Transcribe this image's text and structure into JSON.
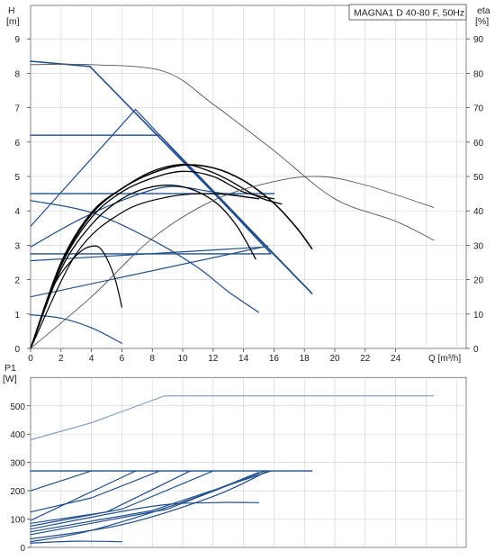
{
  "title": "MAGNA1 D 40-80 F, 50Hz",
  "colors": {
    "blue": "#1f4e8c",
    "light_blue": "#6f8fb8",
    "black": "#000000",
    "gray": "#555555",
    "grid": "#d6d6d6"
  },
  "chart_data": [
    {
      "type": "line",
      "title": "MAGNA1 D 40-80 F, 50Hz",
      "xlabel": "Q [m³/h]",
      "ylabel": "H [m]",
      "y2label": "eta [%]",
      "xlim": [
        0,
        28.5
      ],
      "ylim": [
        0,
        10
      ],
      "y2lim": [
        0,
        100
      ],
      "grid": true,
      "x_ticks": [
        0,
        2,
        4,
        6,
        8,
        10,
        12,
        14,
        16,
        18,
        20,
        22,
        24
      ],
      "y_ticks": [
        0,
        1,
        2,
        3,
        4,
        5,
        6,
        7,
        8,
        9
      ],
      "y2_ticks": [
        0,
        10,
        20,
        30,
        40,
        50,
        60,
        70,
        80,
        90
      ],
      "series": [
        {
          "role": "qh-max",
          "color": "blue",
          "width": 1.6,
          "points": [
            [
              0,
              8.35
            ],
            [
              3.9,
              8.2
            ],
            [
              18.5,
              1.6
            ]
          ]
        },
        {
          "role": "prop-upper",
          "color": "blue",
          "width": 1.4,
          "points": [
            [
              0,
              6.2
            ],
            [
              8.5,
              6.2
            ],
            [
              18.5,
              1.6
            ]
          ]
        },
        {
          "role": "prop-lower",
          "color": "blue",
          "width": 1.4,
          "points": [
            [
              0,
              4.5
            ],
            [
              16,
              4.5
            ]
          ]
        },
        {
          "role": "const-2.75",
          "color": "blue",
          "width": 1.4,
          "points": [
            [
              0,
              2.75
            ],
            [
              15.8,
              2.75
            ]
          ]
        },
        {
          "role": "prop-line-a",
          "color": "blue",
          "width": 1.2,
          "points": [
            [
              0,
              3.55
            ],
            [
              6.9,
              6.95
            ],
            [
              15.8,
              2.75
            ]
          ]
        },
        {
          "role": "prop-line-b",
          "color": "blue",
          "width": 1.2,
          "points": [
            [
              0,
              2.55
            ],
            [
              15.4,
              2.95
            ]
          ]
        },
        {
          "role": "prop-line-c",
          "color": "blue",
          "width": 1.2,
          "points": [
            [
              0,
              1.5
            ],
            [
              15.6,
              2.98
            ]
          ]
        },
        {
          "role": "min-curve-1",
          "color": "blue",
          "width": 1.2,
          "points": [
            [
              0,
              4.3
            ],
            [
              4,
              3.95
            ],
            [
              8,
              3.15
            ],
            [
              11,
              2.35
            ],
            [
              13,
              1.65
            ],
            [
              15,
              1.05
            ]
          ]
        },
        {
          "role": "min-curve-2",
          "color": "blue",
          "width": 1.2,
          "points": [
            [
              0,
              0.98
            ],
            [
              2,
              0.88
            ],
            [
              4,
              0.6
            ],
            [
              6,
              0.15
            ]
          ]
        },
        {
          "role": "rising-blue",
          "color": "blue",
          "width": 1.2,
          "points": [
            [
              0,
              2.95
            ],
            [
              3,
              3.7
            ],
            [
              6,
              4.3
            ],
            [
              9,
              4.7
            ],
            [
              12,
              4.55
            ],
            [
              15,
              4.35
            ]
          ]
        },
        {
          "role": "eta-1",
          "color": "black",
          "width": 1.6,
          "points": [
            [
              0,
              0
            ],
            [
              2,
              2.45
            ],
            [
              4,
              3.9
            ],
            [
              6,
              4.65
            ],
            [
              8,
              5.1
            ],
            [
              10,
              5.33
            ],
            [
              12,
              5.25
            ],
            [
              14,
              4.88
            ],
            [
              16,
              4.22
            ],
            [
              17.5,
              3.5
            ],
            [
              18.5,
              2.9
            ]
          ]
        },
        {
          "role": "eta-2",
          "color": "black",
          "width": 1.3,
          "points": [
            [
              0,
              0
            ],
            [
              2,
              2.5
            ],
            [
              4,
              3.95
            ],
            [
              6,
              4.65
            ],
            [
              8,
              5.15
            ],
            [
              10,
              5.35
            ],
            [
              11.5,
              5.2
            ],
            [
              13,
              4.9
            ],
            [
              15,
              4.4
            ],
            [
              16.5,
              4.2
            ]
          ]
        },
        {
          "role": "eta-3",
          "color": "black",
          "width": 1.3,
          "points": [
            [
              0,
              0
            ],
            [
              2,
              2.4
            ],
            [
              4,
              3.8
            ],
            [
              6,
              4.55
            ],
            [
              8,
              4.95
            ],
            [
              10,
              5.15
            ],
            [
              12,
              5.0
            ],
            [
              14,
              4.55
            ],
            [
              16,
              4.35
            ]
          ]
        },
        {
          "role": "eta-4",
          "color": "black",
          "width": 1.3,
          "points": [
            [
              0,
              0
            ],
            [
              2,
              2.3
            ],
            [
              4,
              3.6
            ],
            [
              6,
              4.35
            ],
            [
              8,
              4.7
            ],
            [
              10,
              4.7
            ],
            [
              12,
              4.3
            ],
            [
              13.5,
              3.6
            ],
            [
              14.8,
              2.6
            ]
          ]
        },
        {
          "role": "eta-5",
          "color": "black",
          "width": 1.2,
          "points": [
            [
              0,
              0
            ],
            [
              1.5,
              1.8
            ],
            [
              3,
              2.7
            ],
            [
              4,
              2.97
            ],
            [
              4.7,
              2.85
            ],
            [
              5.5,
              2.1
            ],
            [
              6,
              1.2
            ]
          ]
        },
        {
          "role": "eta-6",
          "color": "black",
          "width": 1.2,
          "points": [
            [
              0,
              0
            ],
            [
              3,
              2.75
            ],
            [
              6,
              3.95
            ],
            [
              9,
              4.4
            ],
            [
              12,
              4.5
            ],
            [
              15,
              4.35
            ]
          ]
        },
        {
          "role": "grundfos-qh",
          "color": "gray",
          "width": 0.9,
          "points": [
            [
              0,
              8.25
            ],
            [
              4,
              8.25
            ],
            [
              8.8,
              8.05
            ],
            [
              12,
              7.1
            ],
            [
              16,
              5.75
            ],
            [
              20,
              4.35
            ],
            [
              24,
              3.7
            ],
            [
              26.5,
              3.15
            ]
          ]
        },
        {
          "role": "grundfos-eta",
          "color": "gray",
          "width": 0.9,
          "points": [
            [
              0,
              0
            ],
            [
              4,
              1.5
            ],
            [
              8,
              3.2
            ],
            [
              12,
              4.3
            ],
            [
              16,
              4.85
            ],
            [
              19,
              5.0
            ],
            [
              22,
              4.75
            ],
            [
              26.5,
              4.1
            ]
          ]
        }
      ]
    },
    {
      "type": "line",
      "xlabel": "",
      "ylabel": "P1 [W]",
      "xlim": [
        0,
        28.5
      ],
      "ylim": [
        0,
        600
      ],
      "grid": true,
      "y_ticks": [
        0,
        100,
        200,
        300,
        400,
        500
      ],
      "series": [
        {
          "role": "p-max",
          "color": "blue",
          "width": 1.4,
          "points": [
            [
              0,
              270
            ],
            [
              4,
              270
            ],
            [
              18.5,
              270
            ]
          ]
        },
        {
          "role": "p-1",
          "color": "blue",
          "width": 1.2,
          "points": [
            [
              0,
              200
            ],
            [
              4,
              270
            ]
          ]
        },
        {
          "role": "p-2",
          "color": "blue",
          "width": 1.2,
          "points": [
            [
              0,
              125
            ],
            [
              4,
              175
            ],
            [
              8.5,
              270
            ]
          ]
        },
        {
          "role": "p-3",
          "color": "blue",
          "width": 1.2,
          "points": [
            [
              0,
              95
            ],
            [
              6.9,
              270
            ]
          ]
        },
        {
          "role": "p-4",
          "color": "blue",
          "width": 1.2,
          "points": [
            [
              0,
              85
            ],
            [
              5,
              125
            ],
            [
              10.5,
              270
            ]
          ]
        },
        {
          "role": "p-5",
          "color": "blue",
          "width": 1.2,
          "points": [
            [
              0,
              75
            ],
            [
              6,
              135
            ],
            [
              12,
              270
            ]
          ]
        },
        {
          "role": "p-6",
          "color": "blue",
          "width": 1.2,
          "points": [
            [
              0,
              55
            ],
            [
              8,
              130
            ],
            [
              15.8,
              270
            ]
          ]
        },
        {
          "role": "p-7",
          "color": "blue",
          "width": 1.2,
          "points": [
            [
              0,
              45
            ],
            [
              9,
              135
            ],
            [
              15.4,
              270
            ]
          ]
        },
        {
          "role": "p-8",
          "color": "blue",
          "width": 1.2,
          "points": [
            [
              0,
              30
            ],
            [
              6,
              80
            ],
            [
              12,
              180
            ],
            [
              15.6,
              270
            ]
          ]
        },
        {
          "role": "p-9",
          "color": "blue",
          "width": 1.2,
          "points": [
            [
              0,
              20
            ],
            [
              4,
              60
            ],
            [
              10,
              160
            ],
            [
              15,
              265
            ]
          ]
        },
        {
          "role": "p-10",
          "color": "blue",
          "width": 1.2,
          "points": [
            [
              0,
              65
            ],
            [
              8,
              145
            ],
            [
              12,
              158
            ],
            [
              15,
              158
            ]
          ]
        },
        {
          "role": "p-11",
          "color": "blue",
          "width": 1.2,
          "points": [
            [
              0,
              15
            ],
            [
              3,
              22
            ],
            [
              6,
              20
            ]
          ]
        },
        {
          "role": "grundfos-p1",
          "color": "light_blue",
          "width": 1.0,
          "points": [
            [
              0,
              380
            ],
            [
              4,
              440
            ],
            [
              8.8,
              535
            ],
            [
              26.5,
              535
            ]
          ]
        }
      ]
    }
  ]
}
